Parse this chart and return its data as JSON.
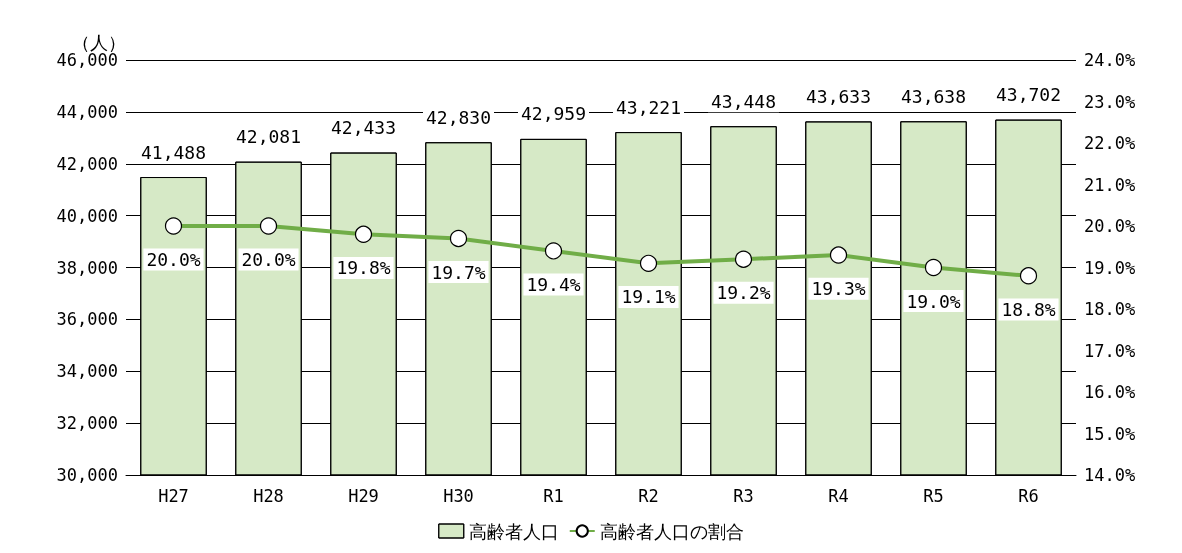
{
  "chart_data": {
    "type": "bar",
    "ylabel": "（人）",
    "categories": [
      "H27",
      "H28",
      "H29",
      "H30",
      "R1",
      "R2",
      "R3",
      "R4",
      "R5",
      "R6"
    ],
    "series": [
      {
        "name": "高齢者人口",
        "color": "#d6e9c6",
        "values": [
          41488,
          42081,
          42433,
          42830,
          42959,
          43221,
          43448,
          43633,
          43638,
          43702
        ],
        "value_labels": [
          "41,488",
          "42,081",
          "42,433",
          "42,830",
          "42,959",
          "43,221",
          "43,448",
          "43,633",
          "43,638",
          "43,702"
        ]
      },
      {
        "name": "高齢者人口の割合",
        "type": "line",
        "axis": "y2",
        "color": "#70ad47",
        "marker": "circle",
        "values": [
          20.0,
          20.0,
          19.8,
          19.7,
          19.4,
          19.1,
          19.2,
          19.3,
          19.0,
          18.8
        ],
        "value_labels": [
          "20.0%",
          "20.0%",
          "19.8%",
          "19.7%",
          "19.4%",
          "19.1%",
          "19.2%",
          "19.3%",
          "19.0%",
          "18.8%"
        ]
      }
    ],
    "ylim": [
      30000,
      46000
    ],
    "yticks": [
      {
        "value": 30000,
        "label": "30,000"
      },
      {
        "value": 32000,
        "label": "32,000"
      },
      {
        "value": 34000,
        "label": "34,000"
      },
      {
        "value": 36000,
        "label": "36,000"
      },
      {
        "value": 38000,
        "label": "38,000"
      },
      {
        "value": 40000,
        "label": "40,000"
      },
      {
        "value": 42000,
        "label": "42,000"
      },
      {
        "value": 44000,
        "label": "44,000"
      },
      {
        "value": 46000,
        "label": "46,000"
      }
    ],
    "y2lim": [
      14,
      24
    ],
    "y2ticks": [
      {
        "value": 14,
        "label": "14.0%"
      },
      {
        "value": 15,
        "label": "15.0%"
      },
      {
        "value": 16,
        "label": "16.0%"
      },
      {
        "value": 17,
        "label": "17.0%"
      },
      {
        "value": 18,
        "label": "18.0%"
      },
      {
        "value": 19,
        "label": "19.0%"
      },
      {
        "value": 20,
        "label": "20.0%"
      },
      {
        "value": 21,
        "label": "21.0%"
      },
      {
        "value": 22,
        "label": "22.0%"
      },
      {
        "value": 23,
        "label": "23.0%"
      },
      {
        "value": 24,
        "label": "24.0%"
      }
    ],
    "grid": "y",
    "legend": "bottom"
  }
}
